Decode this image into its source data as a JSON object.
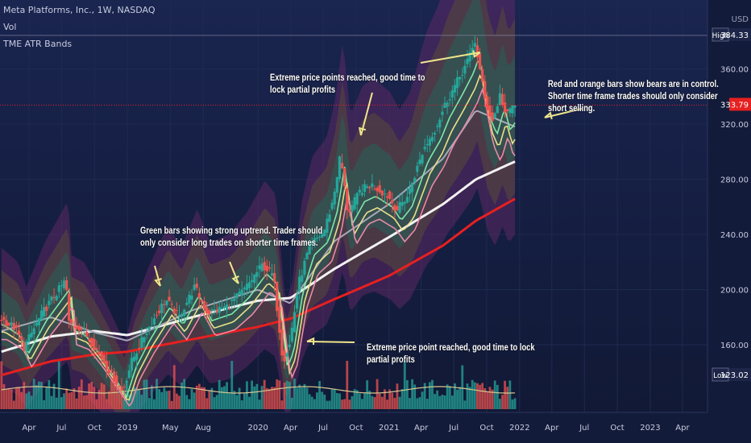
{
  "legend": {
    "symbol": "Meta Platforms, Inc., 1W, NASDAQ",
    "volume": "Vol",
    "indicator": "TME ATR Bands"
  },
  "currency": "USD",
  "price_badges": {
    "high_label": "High",
    "high_value": "384.33",
    "current_value": "333.79",
    "low_label": "Low",
    "low_value": "123.02"
  },
  "annotations": [
    "Extreme price points reached, good time to lock partial profits",
    "Red and orange bars show bears are in control.  Shorter time frame trades should only consider short selling.",
    "Green bars showing strong uptrend.  Trader should only consider long trades on shorter time frames.",
    "Extreme price point reached, good time to lock partial profits"
  ],
  "colors": {
    "background": "#131b3a",
    "grid": "#1f2a50",
    "bull": "#26a69a",
    "bear": "#ef5350",
    "ma_white": "#f2f2f2",
    "ma_red": "#e62020",
    "ma_gray": "#a8a8b8",
    "arrow": "#f0e68c",
    "current_price": "#e62020"
  },
  "chart_data": {
    "type": "candlestick",
    "y_axis": {
      "ticks": [
        160,
        200,
        240,
        280,
        320,
        360
      ],
      "tick_labels": [
        "160.00",
        "200.00",
        "240.00",
        "280.00",
        "320.00",
        "360.00"
      ],
      "ylim": [
        111,
        410
      ]
    },
    "x_axis": {
      "ticks": [
        "2018-04-01",
        "2018-07-01",
        "2018-10-01",
        "2019-01-01",
        "2019-05-01",
        "2019-08-01",
        "2020-01-01",
        "2020-04-01",
        "2020-07-01",
        "2020-10-01",
        "2021-01-01",
        "2021-04-01",
        "2021-07-01",
        "2021-10-01",
        "2022-01-01",
        "2022-04-01",
        "2022-07-01",
        "2022-10-01",
        "2023-01-01",
        "2023-04-01"
      ],
      "tick_labels": [
        "Apr",
        "Jul",
        "Oct",
        "2019",
        "May",
        "Aug",
        "2020",
        "Apr",
        "Jul",
        "Oct",
        "2021",
        "Apr",
        "Jul",
        "Oct",
        "2022",
        "Apr",
        "Jul",
        "Oct",
        "2023",
        "Apr"
      ],
      "xlim": [
        "2018-01-10",
        "2023-06-10"
      ]
    },
    "series": [
      {
        "name": "Price",
        "points": [
          [
            "2018-01-14",
            180
          ],
          [
            "2018-03-01",
            172
          ],
          [
            "2018-03-25",
            158
          ],
          [
            "2018-05-15",
            183
          ],
          [
            "2018-07-20",
            207
          ],
          [
            "2018-07-28",
            176
          ],
          [
            "2018-09-01",
            172
          ],
          [
            "2018-10-10",
            158
          ],
          [
            "2018-11-20",
            141
          ],
          [
            "2018-12-25",
            126
          ],
          [
            "2019-01-20",
            148
          ],
          [
            "2019-03-01",
            169
          ],
          [
            "2019-04-25",
            193
          ],
          [
            "2019-06-01",
            180
          ],
          [
            "2019-07-15",
            202
          ],
          [
            "2019-08-20",
            183
          ],
          [
            "2019-10-15",
            188
          ],
          [
            "2019-12-01",
            200
          ],
          [
            "2020-01-20",
            218
          ],
          [
            "2020-02-20",
            210
          ],
          [
            "2020-03-18",
            148
          ],
          [
            "2020-04-05",
            160
          ],
          [
            "2020-05-01",
            205
          ],
          [
            "2020-06-01",
            232
          ],
          [
            "2020-07-10",
            242
          ],
          [
            "2020-08-05",
            265
          ],
          [
            "2020-08-25",
            298
          ],
          [
            "2020-09-15",
            255
          ],
          [
            "2020-10-20",
            272
          ],
          [
            "2020-11-20",
            276
          ],
          [
            "2021-01-05",
            268
          ],
          [
            "2021-01-30",
            258
          ],
          [
            "2021-03-01",
            268
          ],
          [
            "2021-04-15",
            302
          ],
          [
            "2021-05-20",
            318
          ],
          [
            "2021-06-15",
            335
          ],
          [
            "2021-07-20",
            352
          ],
          [
            "2021-08-20",
            368
          ],
          [
            "2021-09-05",
            380
          ],
          [
            "2021-10-05",
            335
          ],
          [
            "2021-10-25",
            322
          ],
          [
            "2021-11-15",
            342
          ],
          [
            "2021-12-01",
            325
          ],
          [
            "2021-12-20",
            333.79
          ]
        ],
        "low": 123.02,
        "high": 384.33,
        "last": 333.79
      },
      {
        "points": [
          [
            "2018-01-14",
            155
          ],
          [
            "2018-06-01",
            166
          ],
          [
            "2018-10-01",
            170
          ],
          [
            "2019-01-01",
            167
          ],
          [
            "2019-07-01",
            180
          ],
          [
            "2020-01-01",
            192
          ],
          [
            "2020-04-01",
            194
          ],
          [
            "2020-08-01",
            215
          ],
          [
            "2021-01-01",
            238
          ],
          [
            "2021-06-01",
            262
          ],
          [
            "2021-09-01",
            280
          ],
          [
            "2021-12-20",
            293
          ]
        ]
      },
      {
        "points": [
          [
            "2018-01-14",
            138
          ],
          [
            "2018-06-01",
            148
          ],
          [
            "2018-10-01",
            153
          ],
          [
            "2019-01-01",
            155
          ],
          [
            "2019-07-01",
            164
          ],
          [
            "2020-01-01",
            173
          ],
          [
            "2020-04-01",
            179
          ],
          [
            "2020-08-01",
            193
          ],
          [
            "2021-01-01",
            210
          ],
          [
            "2021-06-01",
            232
          ],
          [
            "2021-09-01",
            250
          ],
          [
            "2021-12-20",
            266
          ]
        ]
      },
      {
        "points": [
          [
            "2018-01-14",
            170
          ],
          [
            "2018-06-01",
            180
          ],
          [
            "2018-10-01",
            169
          ],
          [
            "2019-01-01",
            163
          ],
          [
            "2019-07-01",
            185
          ],
          [
            "2020-01-01",
            200
          ],
          [
            "2020-04-01",
            190
          ],
          [
            "2020-08-01",
            235
          ],
          [
            "2021-01-01",
            262
          ],
          [
            "2021-06-01",
            295
          ],
          [
            "2021-09-01",
            330
          ],
          [
            "2021-12-20",
            318
          ]
        ]
      }
    ]
  }
}
